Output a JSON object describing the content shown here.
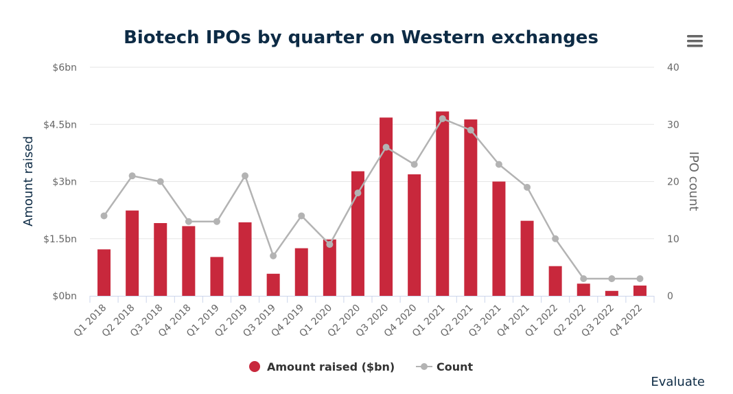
{
  "menu_icon": "hamburger-menu-icon",
  "credit": "Evaluate",
  "colors": {
    "bar": "#c8283c",
    "line": "#b3b3b3",
    "title": "#0d2b45",
    "left_axis_title": "#0d2b45",
    "right_axis_title": "#666666",
    "tick": "#666666",
    "grid": "#e6e6e6",
    "axis_line": "#ccd6eb"
  },
  "chart_data": {
    "type": "bar",
    "title": "Biotech IPOs by quarter on Western exchanges",
    "categories": [
      "Q1 2018",
      "Q2 2018",
      "Q3 2018",
      "Q4 2018",
      "Q1 2019",
      "Q2 2019",
      "Q3 2019",
      "Q4 2019",
      "Q1 2020",
      "Q2 2020",
      "Q3 2020",
      "Q4 2020",
      "Q1 2021",
      "Q2 2021",
      "Q3 2021",
      "Q4 2021",
      "Q1 2022",
      "Q2 2022",
      "Q3 2022",
      "Q4 2022"
    ],
    "series": [
      {
        "name": "Amount raised ($bn)",
        "type": "bar",
        "axis": "left",
        "values": [
          1.22,
          2.24,
          1.91,
          1.83,
          1.02,
          1.93,
          0.58,
          1.25,
          1.48,
          3.27,
          4.68,
          3.19,
          4.84,
          4.63,
          3.0,
          1.97,
          0.78,
          0.32,
          0.13,
          0.27
        ]
      },
      {
        "name": "Count",
        "type": "line",
        "axis": "right",
        "values": [
          14,
          21,
          20,
          13,
          13,
          21,
          7,
          14,
          9,
          18,
          26,
          23,
          31,
          29,
          23,
          19,
          10,
          3,
          3,
          3
        ]
      }
    ],
    "y_left": {
      "label": "Amount raised",
      "range": [
        0,
        6
      ],
      "ticks": [
        0,
        1.5,
        3,
        4.5,
        6
      ],
      "tick_labels": [
        "$0bn",
        "$1.5bn",
        "$3bn",
        "$4.5bn",
        "$6bn"
      ]
    },
    "y_right": {
      "label": "IPO count",
      "range": [
        0,
        40
      ],
      "ticks": [
        0,
        10,
        20,
        30,
        40
      ],
      "tick_labels": [
        "0",
        "10",
        "20",
        "30",
        "40"
      ]
    },
    "grid": true,
    "legend_position": "bottom-center"
  }
}
